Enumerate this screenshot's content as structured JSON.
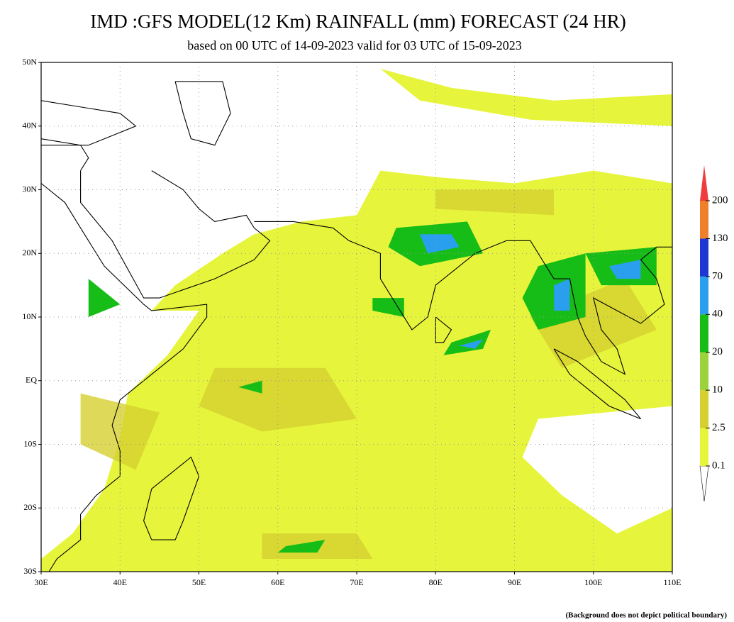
{
  "title": "IMD :GFS MODEL(12 Km) RAINFALL (mm) FORECAST (24 HR)",
  "subtitle": "based on 00 UTC of 14-09-2023 valid for 03 UTC of 15-09-2023",
  "map": {
    "lat_labels": [
      "50N",
      "40N",
      "30N",
      "20N",
      "10N",
      "EQ",
      "10S",
      "20S",
      "30S"
    ],
    "lon_labels": [
      "30E",
      "40E",
      "50E",
      "60E",
      "70E",
      "80E",
      "90E",
      "100E",
      "110E"
    ]
  },
  "legend": {
    "below_color": "#ffffff",
    "levels": [
      {
        "label": "0.1",
        "color": "#e6f53b"
      },
      {
        "label": "2.5",
        "color": "#d6cf30"
      },
      {
        "label": "10",
        "color": "#9cd23c"
      },
      {
        "label": "20",
        "color": "#17bd17"
      },
      {
        "label": "40",
        "color": "#2a9fee"
      },
      {
        "label": "70",
        "color": "#1c37d4"
      },
      {
        "label": "130",
        "color": "#ee7f2b"
      },
      {
        "label": "200",
        "color": "#f03c3c"
      }
    ]
  },
  "footnote": "(Background does not depict political boundary)"
}
